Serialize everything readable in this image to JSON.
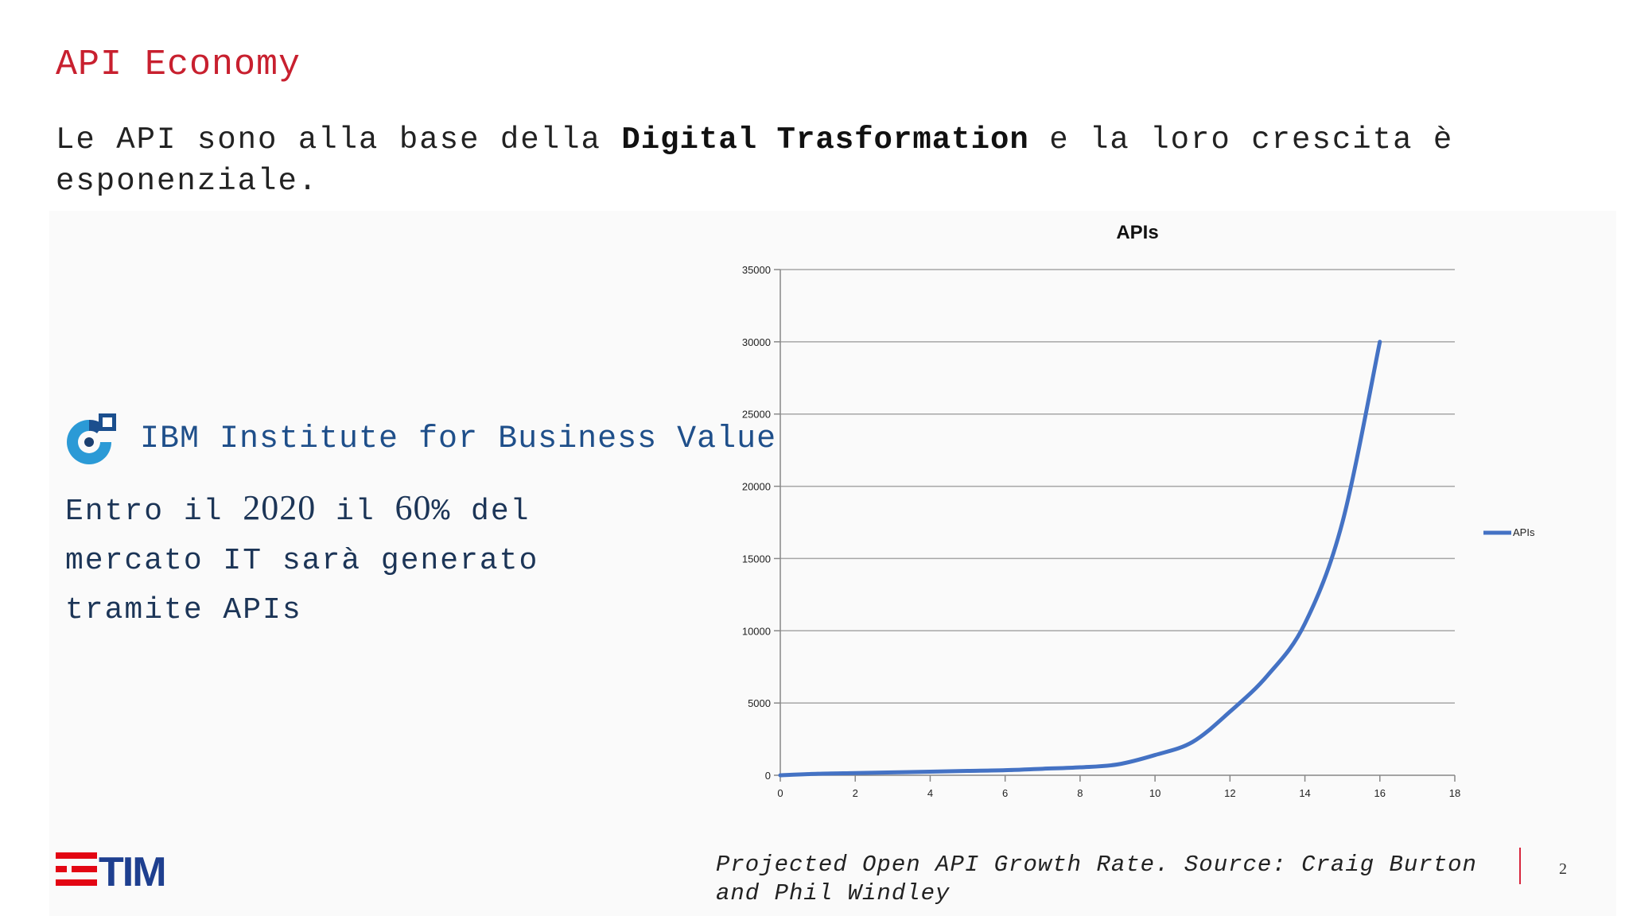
{
  "slide": {
    "title": "API Economy",
    "intro_pre": "Le API sono alla base della ",
    "intro_bold": "Digital Trasformation",
    "intro_post": " e la loro crescita è esponenziale.",
    "page_number": "2"
  },
  "ibm": {
    "name": "IBM Institute for Business Value",
    "stat_1": "Entro il ",
    "stat_year": "2020",
    "stat_2": " il ",
    "stat_pct": "60",
    "stat_3": "% del mercato IT sarà generato tramite APIs"
  },
  "caption": "Projected Open API Growth Rate. Source: Craig Burton and Phil Windley",
  "colors": {
    "accent_red": "#c8202f",
    "ibm_blue": "#1f4f8a",
    "series": "#4472c4",
    "tim_blue": "#1e3f8f",
    "tim_red": "#e30613"
  },
  "icons": {
    "ibm_logo": "ibm-ibv-logo",
    "tim_logo": "tim-logo"
  },
  "chart_data": {
    "type": "line",
    "title": "APIs",
    "xlabel": "",
    "ylabel": "",
    "xlim": [
      0,
      18
    ],
    "ylim": [
      0,
      35000
    ],
    "xticks": [
      0,
      2,
      4,
      6,
      8,
      10,
      12,
      14,
      16,
      18
    ],
    "yticks": [
      0,
      5000,
      10000,
      15000,
      20000,
      25000,
      30000,
      35000
    ],
    "grid": true,
    "legend_position": "right",
    "series": [
      {
        "name": "APIs",
        "x": [
          0,
          1,
          2,
          3,
          4,
          5,
          6,
          7,
          8,
          9,
          10,
          11,
          12,
          13,
          14,
          15,
          16
        ],
        "y": [
          0,
          100,
          150,
          200,
          250,
          300,
          350,
          450,
          550,
          750,
          1400,
          2300,
          4400,
          6900,
          10500,
          17500,
          30000
        ]
      }
    ]
  }
}
